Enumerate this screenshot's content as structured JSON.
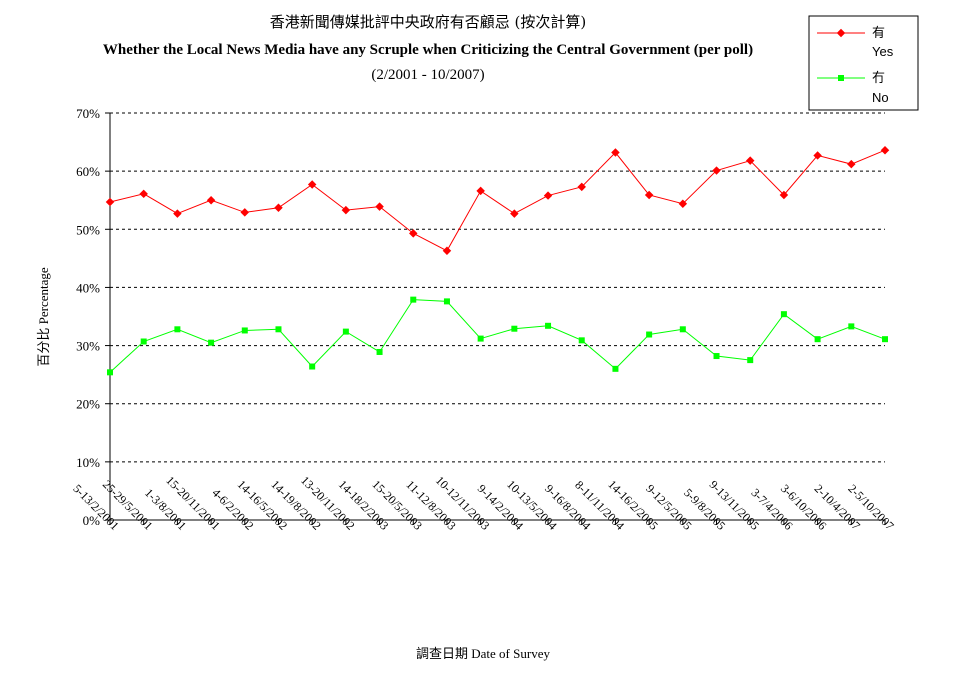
{
  "chart_data": {
    "type": "line",
    "title": "香港新聞傳媒批評中央政府有否顧忌 (按次計算)",
    "subtitle": "Whether the Local News Media have any Scruple when Criticizing the Central Government (per poll)",
    "date_range": "(2/2001 - 10/2007)",
    "xlabel": "調查日期 Date of Survey",
    "ylabel": "百分比 Percentage",
    "ylim": [
      0,
      70
    ],
    "yticks": [
      "0%",
      "10%",
      "20%",
      "30%",
      "40%",
      "50%",
      "60%",
      "70%"
    ],
    "grid": true,
    "legend_position": "top-right",
    "categories": [
      "5-13/2/2001",
      "25-29/5/2001",
      "1-3/8/2001",
      "15-20/11/2001",
      "4-6/2/2002",
      "14-16/5/2002",
      "14-19/8/2002",
      "13-20/11/2002",
      "14-18/2/2003",
      "15-20/5/2003",
      "11-12/8/2003",
      "10-12/11/2003",
      "9-14/2/2004",
      "10-13/5/2004",
      "9-16/8/2004",
      "8-11/11/2004",
      "14-16/2/2005",
      "9-12/5/2005",
      "5-9/8/2005",
      "9-13/11/2005",
      "3-7/4/2006",
      "3-6/10/2006",
      "2-10/4/2007",
      "2-5/10/2007"
    ],
    "series": [
      {
        "name": "有",
        "name_en": "Yes",
        "color": "#ff0000",
        "values": [
          54.7,
          56.1,
          52.7,
          55.0,
          52.9,
          53.7,
          57.7,
          53.3,
          53.9,
          49.3,
          46.3,
          56.6,
          52.7,
          55.8,
          57.3,
          63.2,
          55.9,
          54.4,
          60.1,
          61.8,
          55.9,
          62.7,
          61.2,
          63.6
        ]
      },
      {
        "name": "冇",
        "name_en": "No",
        "color": "#00ff00",
        "values": [
          25.4,
          30.7,
          32.8,
          30.5,
          32.6,
          32.8,
          26.4,
          32.4,
          28.9,
          37.9,
          37.6,
          31.2,
          32.9,
          33.4,
          30.9,
          26.0,
          31.9,
          32.8,
          28.2,
          27.5,
          35.4,
          31.1,
          33.3,
          31.1
        ]
      }
    ]
  }
}
